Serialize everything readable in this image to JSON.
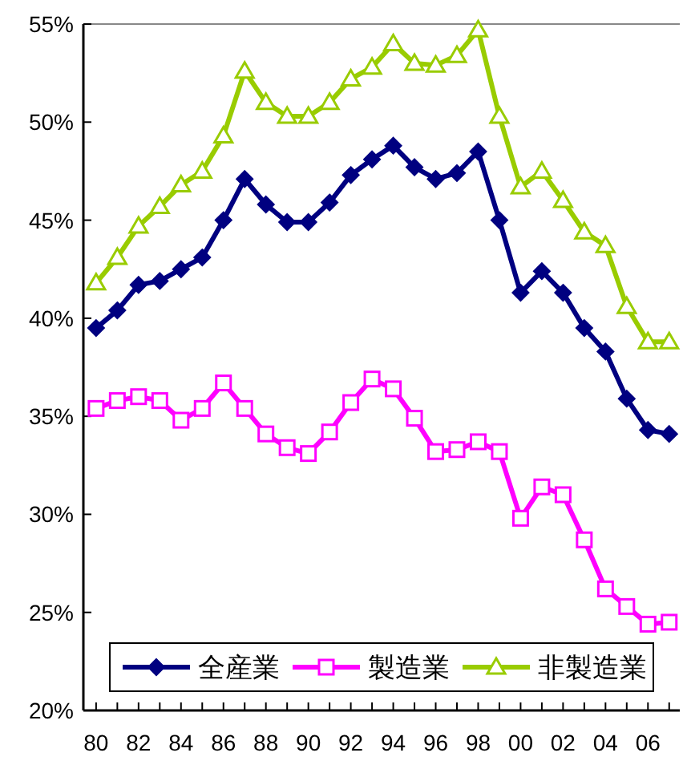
{
  "chart_data": {
    "type": "line",
    "x": [
      1980,
      1981,
      1982,
      1983,
      1984,
      1985,
      1986,
      1987,
      1988,
      1989,
      1990,
      1991,
      1992,
      1993,
      1994,
      1995,
      1996,
      1997,
      1998,
      1999,
      2000,
      2001,
      2002,
      2003,
      2004,
      2005,
      2006,
      2007
    ],
    "series": [
      {
        "name": "全産業",
        "color": "#000080",
        "marker": "diamond",
        "values": [
          39.5,
          40.4,
          41.7,
          41.9,
          42.5,
          43.1,
          45.0,
          47.1,
          45.8,
          44.9,
          44.9,
          45.9,
          47.3,
          48.1,
          48.8,
          47.7,
          47.1,
          47.4,
          48.5,
          45.0,
          41.3,
          42.4,
          41.3,
          39.5,
          38.3,
          35.9,
          34.3,
          34.1
        ]
      },
      {
        "name": "製造業",
        "color": "#ff00ff",
        "marker": "square",
        "values": [
          35.4,
          35.8,
          36.0,
          35.8,
          34.8,
          35.4,
          36.7,
          35.4,
          34.1,
          33.4,
          33.1,
          34.2,
          35.7,
          36.9,
          36.4,
          34.9,
          33.2,
          33.3,
          33.7,
          33.2,
          29.8,
          31.4,
          31.0,
          28.7,
          26.2,
          25.3,
          24.4,
          24.5
        ]
      },
      {
        "name": "非製造業",
        "color": "#99cc00",
        "marker": "triangle",
        "values": [
          41.8,
          43.1,
          44.7,
          45.7,
          46.8,
          47.5,
          49.3,
          52.6,
          51.0,
          50.3,
          50.3,
          51.0,
          52.2,
          52.8,
          54.0,
          53.0,
          52.9,
          53.4,
          54.7,
          50.3,
          46.7,
          47.5,
          46.0,
          44.4,
          43.7,
          40.6,
          38.8,
          38.8
        ]
      }
    ],
    "xlim": [
      1979.4,
      2007.5
    ],
    "xticks": [
      {
        "value": 1980,
        "label": "80"
      },
      {
        "value": 1981,
        "label": null
      },
      {
        "value": 1982,
        "label": "82"
      },
      {
        "value": 1983,
        "label": null
      },
      {
        "value": 1984,
        "label": "84"
      },
      {
        "value": 1985,
        "label": null
      },
      {
        "value": 1986,
        "label": "86"
      },
      {
        "value": 1987,
        "label": null
      },
      {
        "value": 1988,
        "label": "88"
      },
      {
        "value": 1989,
        "label": null
      },
      {
        "value": 1990,
        "label": "90"
      },
      {
        "value": 1991,
        "label": null
      },
      {
        "value": 1992,
        "label": "92"
      },
      {
        "value": 1993,
        "label": null
      },
      {
        "value": 1994,
        "label": "94"
      },
      {
        "value": 1995,
        "label": null
      },
      {
        "value": 1996,
        "label": "96"
      },
      {
        "value": 1997,
        "label": null
      },
      {
        "value": 1998,
        "label": "98"
      },
      {
        "value": 1999,
        "label": null
      },
      {
        "value": 2000,
        "label": "00"
      },
      {
        "value": 2001,
        "label": null
      },
      {
        "value": 2002,
        "label": "02"
      },
      {
        "value": 2003,
        "label": null
      },
      {
        "value": 2004,
        "label": "04"
      },
      {
        "value": 2005,
        "label": null
      },
      {
        "value": 2006,
        "label": "06"
      },
      {
        "value": 2007,
        "label": null
      }
    ],
    "ylim": [
      20,
      55
    ],
    "yticks": [
      {
        "value": 20,
        "label": "20%"
      },
      {
        "value": 25,
        "label": "25%"
      },
      {
        "value": 30,
        "label": "30%"
      },
      {
        "value": 35,
        "label": "35%"
      },
      {
        "value": 40,
        "label": "40%"
      },
      {
        "value": 45,
        "label": "45%"
      },
      {
        "value": 50,
        "label": "50%"
      },
      {
        "value": 55,
        "label": "55%"
      }
    ],
    "grid": false,
    "legend": "bottom",
    "line_style": "solid"
  }
}
